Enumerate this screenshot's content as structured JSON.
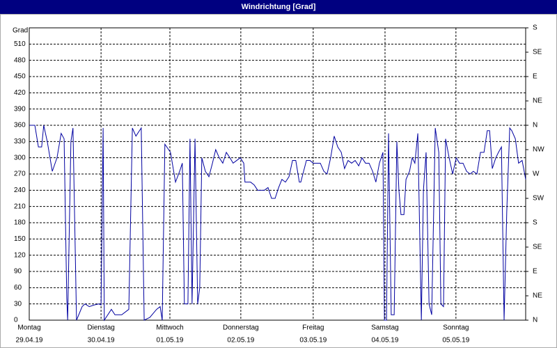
{
  "window_title": "Windrichtung [Grad]",
  "chart_data": {
    "type": "line",
    "ylabel": "Grad",
    "xlim": [
      0,
      168
    ],
    "xticks": [
      {
        "value": 0,
        "label": "Montag",
        "date": "29.04.19"
      },
      {
        "value": 24.3,
        "label": "Dienstag",
        "date": "30.04.19"
      },
      {
        "value": 47.6,
        "label": "Mittwoch",
        "date": "01.05.19"
      },
      {
        "value": 71.6,
        "label": "Donnerstag",
        "date": "02.05.19"
      },
      {
        "value": 96.1,
        "label": "Freitag",
        "date": "03.05.19"
      },
      {
        "value": 120.4,
        "label": "Samstag",
        "date": "04.05.19"
      },
      {
        "value": 144.4,
        "label": "Sonntag",
        "date": "05.05.19"
      }
    ],
    "ylim": [
      0,
      540
    ],
    "yticks": [
      0,
      30,
      60,
      90,
      120,
      150,
      180,
      210,
      240,
      270,
      300,
      330,
      360,
      390,
      420,
      450,
      480,
      510
    ],
    "y2lim": [
      0,
      540
    ],
    "y2ticks": [
      {
        "value": 0,
        "label": "N"
      },
      {
        "value": 45,
        "label": "NE"
      },
      {
        "value": 90,
        "label": "E"
      },
      {
        "value": 135,
        "label": "SE"
      },
      {
        "value": 180,
        "label": "S"
      },
      {
        "value": 225,
        "label": "SW"
      },
      {
        "value": 270,
        "label": "W"
      },
      {
        "value": 315,
        "label": "NW"
      },
      {
        "value": 360,
        "label": "N"
      },
      {
        "value": 405,
        "label": "NE"
      },
      {
        "value": 450,
        "label": "E"
      },
      {
        "value": 495,
        "label": "SE"
      },
      {
        "value": 540,
        "label": "S"
      }
    ],
    "grid": true,
    "series": [
      {
        "color": "#0000a0",
        "x": [
          0,
          1.9,
          3.1,
          4.2,
          4.9,
          6.1,
          7.8,
          9.4,
          10.8,
          11.8,
          12.7,
          13.0,
          14.1,
          14.8,
          16.0,
          17.9,
          18.9,
          20.3,
          21.9,
          23.6,
          24.3,
          25.0,
          25.4,
          27.8,
          29.0,
          31.3,
          33.7,
          34.9,
          36.1,
          37.9,
          38.9,
          40.8,
          43.1,
          44.3,
          45.0,
          45.9,
          47.8,
          49.5,
          50.9,
          51.8,
          52.5,
          53.7,
          54.4,
          55.1,
          56.1,
          57.0,
          57.7,
          58.4,
          59.6,
          60.8,
          62.0,
          63.1,
          64.3,
          65.5,
          66.7,
          67.9,
          69.0,
          70.2,
          71.4,
          72.6,
          73.0,
          74.9,
          76.1,
          77.3,
          78.5,
          79.6,
          80.8,
          82.0,
          83.2,
          84.4,
          85.5,
          86.7,
          87.9,
          89.1,
          90.2,
          91.4,
          91.9,
          93.8,
          95.0,
          96.1,
          97.3,
          98.5,
          99.7,
          100.8,
          102.0,
          103.2,
          104.4,
          105.6,
          106.7,
          107.9,
          109.1,
          110.3,
          111.5,
          112.6,
          113.8,
          115.0,
          116.2,
          117.3,
          118.5,
          119.7,
          120.2,
          120.9,
          121.6,
          122.5,
          123.5,
          124.4,
          125.1,
          125.8,
          126.8,
          127.5,
          128.7,
          129.6,
          130.5,
          131.5,
          132.7,
          133.4,
          134.3,
          135.3,
          136.2,
          137.4,
          138.6,
          139.3,
          140.2,
          140.9,
          142.1,
          143.3,
          144.5,
          145.6,
          146.8,
          148.0,
          149.2,
          150.3,
          151.5,
          152.7,
          153.9,
          155.0,
          155.8,
          156.7,
          157.9,
          158.8,
          159.8,
          160.7,
          161.6,
          162.6,
          163.3,
          164.5,
          165.6,
          166.8,
          168.0
        ],
        "values": [
          360,
          360,
          320,
          320,
          360,
          330,
          275,
          300,
          345,
          335,
          40,
          0,
          330,
          355,
          0,
          25,
          30,
          25,
          28,
          30,
          28,
          355,
          0,
          20,
          10,
          10,
          20,
          355,
          340,
          355,
          0,
          5,
          20,
          25,
          0,
          325,
          310,
          255,
          275,
          290,
          30,
          30,
          335,
          30,
          335,
          30,
          60,
          300,
          275,
          265,
          290,
          315,
          300,
          290,
          310,
          300,
          290,
          295,
          300,
          290,
          255,
          255,
          250,
          240,
          240,
          240,
          245,
          225,
          225,
          245,
          260,
          255,
          265,
          295,
          295,
          255,
          255,
          295,
          295,
          290,
          290,
          290,
          275,
          270,
          300,
          340,
          320,
          310,
          280,
          295,
          290,
          295,
          285,
          300,
          290,
          290,
          275,
          255,
          290,
          310,
          0,
          0,
          345,
          10,
          10,
          330,
          240,
          195,
          195,
          260,
          275,
          300,
          290,
          345,
          0,
          240,
          310,
          30,
          10,
          355,
          310,
          30,
          25,
          335,
          300,
          270,
          300,
          290,
          290,
          275,
          270,
          275,
          270,
          310,
          310,
          350,
          350,
          280,
          300,
          310,
          320,
          0,
          200,
          355,
          350,
          335,
          290,
          295,
          260
        ]
      }
    ]
  }
}
